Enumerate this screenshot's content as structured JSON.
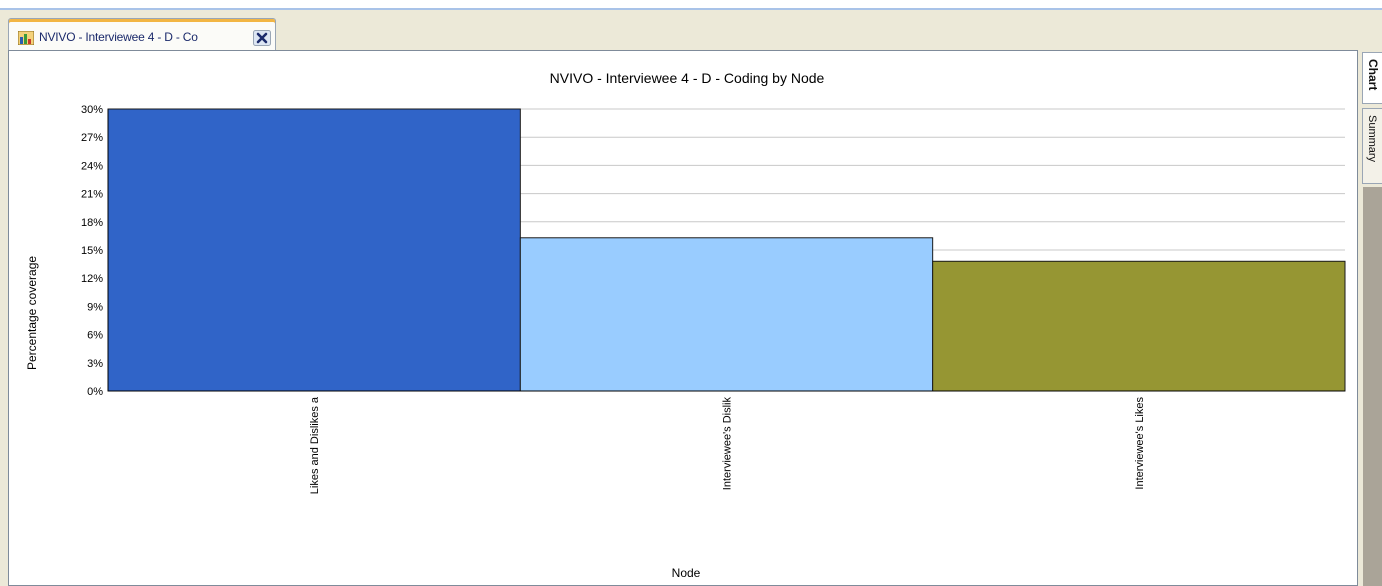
{
  "tab": {
    "title": "NVIVO - Interviewee 4 - D - Co",
    "icon": "chart-icon",
    "close_icon": "close-icon"
  },
  "side_tabs": {
    "chart_label": "Chart",
    "summary_label": "Summary"
  },
  "chart_data": {
    "type": "bar",
    "title": "NVIVO - Interviewee 4 - D - Coding by Node",
    "xlabel": "Node",
    "ylabel": "Percentage coverage",
    "categories": [
      "Likes and Dislikes a",
      "Interviewee's Dislik",
      "Interviewee's Likes"
    ],
    "values": [
      30,
      16.3,
      13.8
    ],
    "ylim": [
      0,
      30
    ],
    "yticks": [
      "0%",
      "3%",
      "6%",
      "9%",
      "12%",
      "15%",
      "18%",
      "21%",
      "24%",
      "27%",
      "30%"
    ],
    "grid": true,
    "colors": [
      "#3064c8",
      "#99ccff",
      "#969633"
    ]
  }
}
